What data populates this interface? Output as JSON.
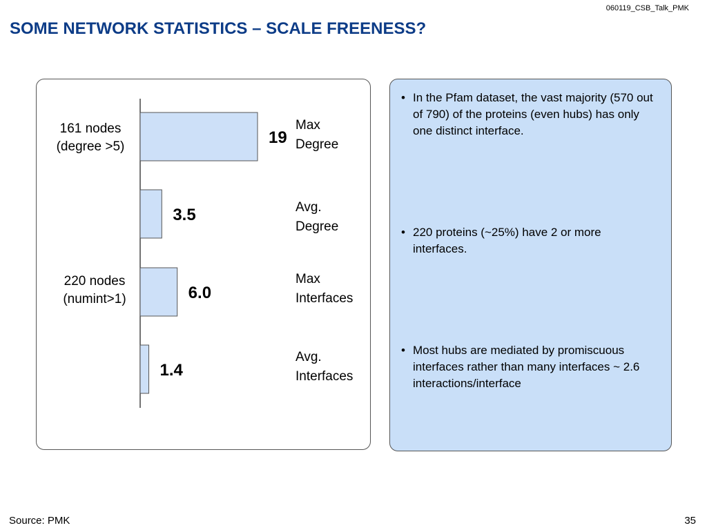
{
  "header": {
    "file_id": "060119_CSB_Talk_PMK",
    "title": "SOME NETWORK STATISTICS – SCALE FREENESS?"
  },
  "chart_data": {
    "type": "bar",
    "orientation": "horizontal",
    "categories": [
      "Max Degree",
      "Avg. Degree",
      "Max Interfaces",
      "Avg. Interfaces"
    ],
    "category_lines": [
      [
        "Max",
        "Degree"
      ],
      [
        "Avg.",
        "Degree"
      ],
      [
        "Max",
        "Interfaces"
      ],
      [
        "Avg.",
        "Interfaces"
      ]
    ],
    "values": [
      19,
      3.5,
      6.0,
      1.4
    ],
    "value_labels": [
      "19",
      "3.5",
      "6.0",
      "1.4"
    ],
    "xlim": [
      0,
      19
    ],
    "bar_color": "#cde0f8",
    "bar_edge_color": "#555555",
    "groups": [
      {
        "lines": [
          "161 nodes",
          "(degree >5)"
        ],
        "applies_to": [
          "Max Degree"
        ]
      },
      {
        "lines": [
          "220 nodes",
          "(numint>1)"
        ],
        "applies_to": [
          "Max Interfaces"
        ]
      }
    ],
    "grid": false,
    "legend": "none"
  },
  "notes": {
    "bullets": [
      "In the Pfam dataset, the vast majority (570 out of 790) of the proteins (even hubs) has only one distinct interface.",
      "220 proteins (~25%) have 2 or more interfaces.",
      "Most hubs are mediated by promiscuous interfaces rather than many interfaces ~ 2.6 interactions/interface"
    ],
    "panel_color": "#c9dff8"
  },
  "footer": {
    "source": "Source: PMK",
    "page_number": "35"
  },
  "colors": {
    "title": "#0d3c87"
  }
}
